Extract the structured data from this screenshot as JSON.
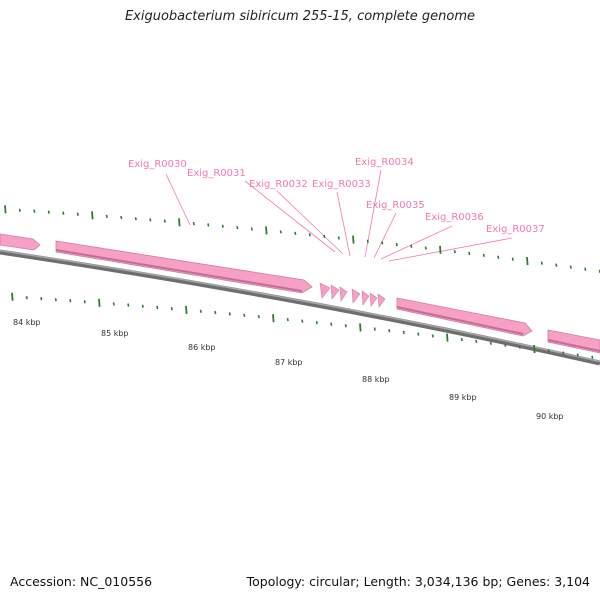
{
  "title": "Exiguobacterium sibiricum 255-15, complete genome",
  "footer": {
    "accession": "Accession: NC_010556",
    "summary": "Topology: circular; Length: 3,034,136 bp; Genes: 3,104"
  },
  "colors": {
    "backbone": "#808080",
    "gene": "#f5a0c4",
    "gene_label": "#f07ab0",
    "tick": "#2e7d32",
    "scale_label": "#333333"
  },
  "scale_labels": [
    "84 kbp",
    "85 kbp",
    "86 kbp",
    "87 kbp",
    "88 kbp",
    "89 kbp",
    "90 kbp"
  ],
  "gene_labels": [
    "Exig_R0030",
    "Exig_R0031",
    "Exig_R0032",
    "Exig_R0033",
    "Exig_R0034",
    "Exig_R0035",
    "Exig_R0036",
    "Exig_R0037"
  ]
}
